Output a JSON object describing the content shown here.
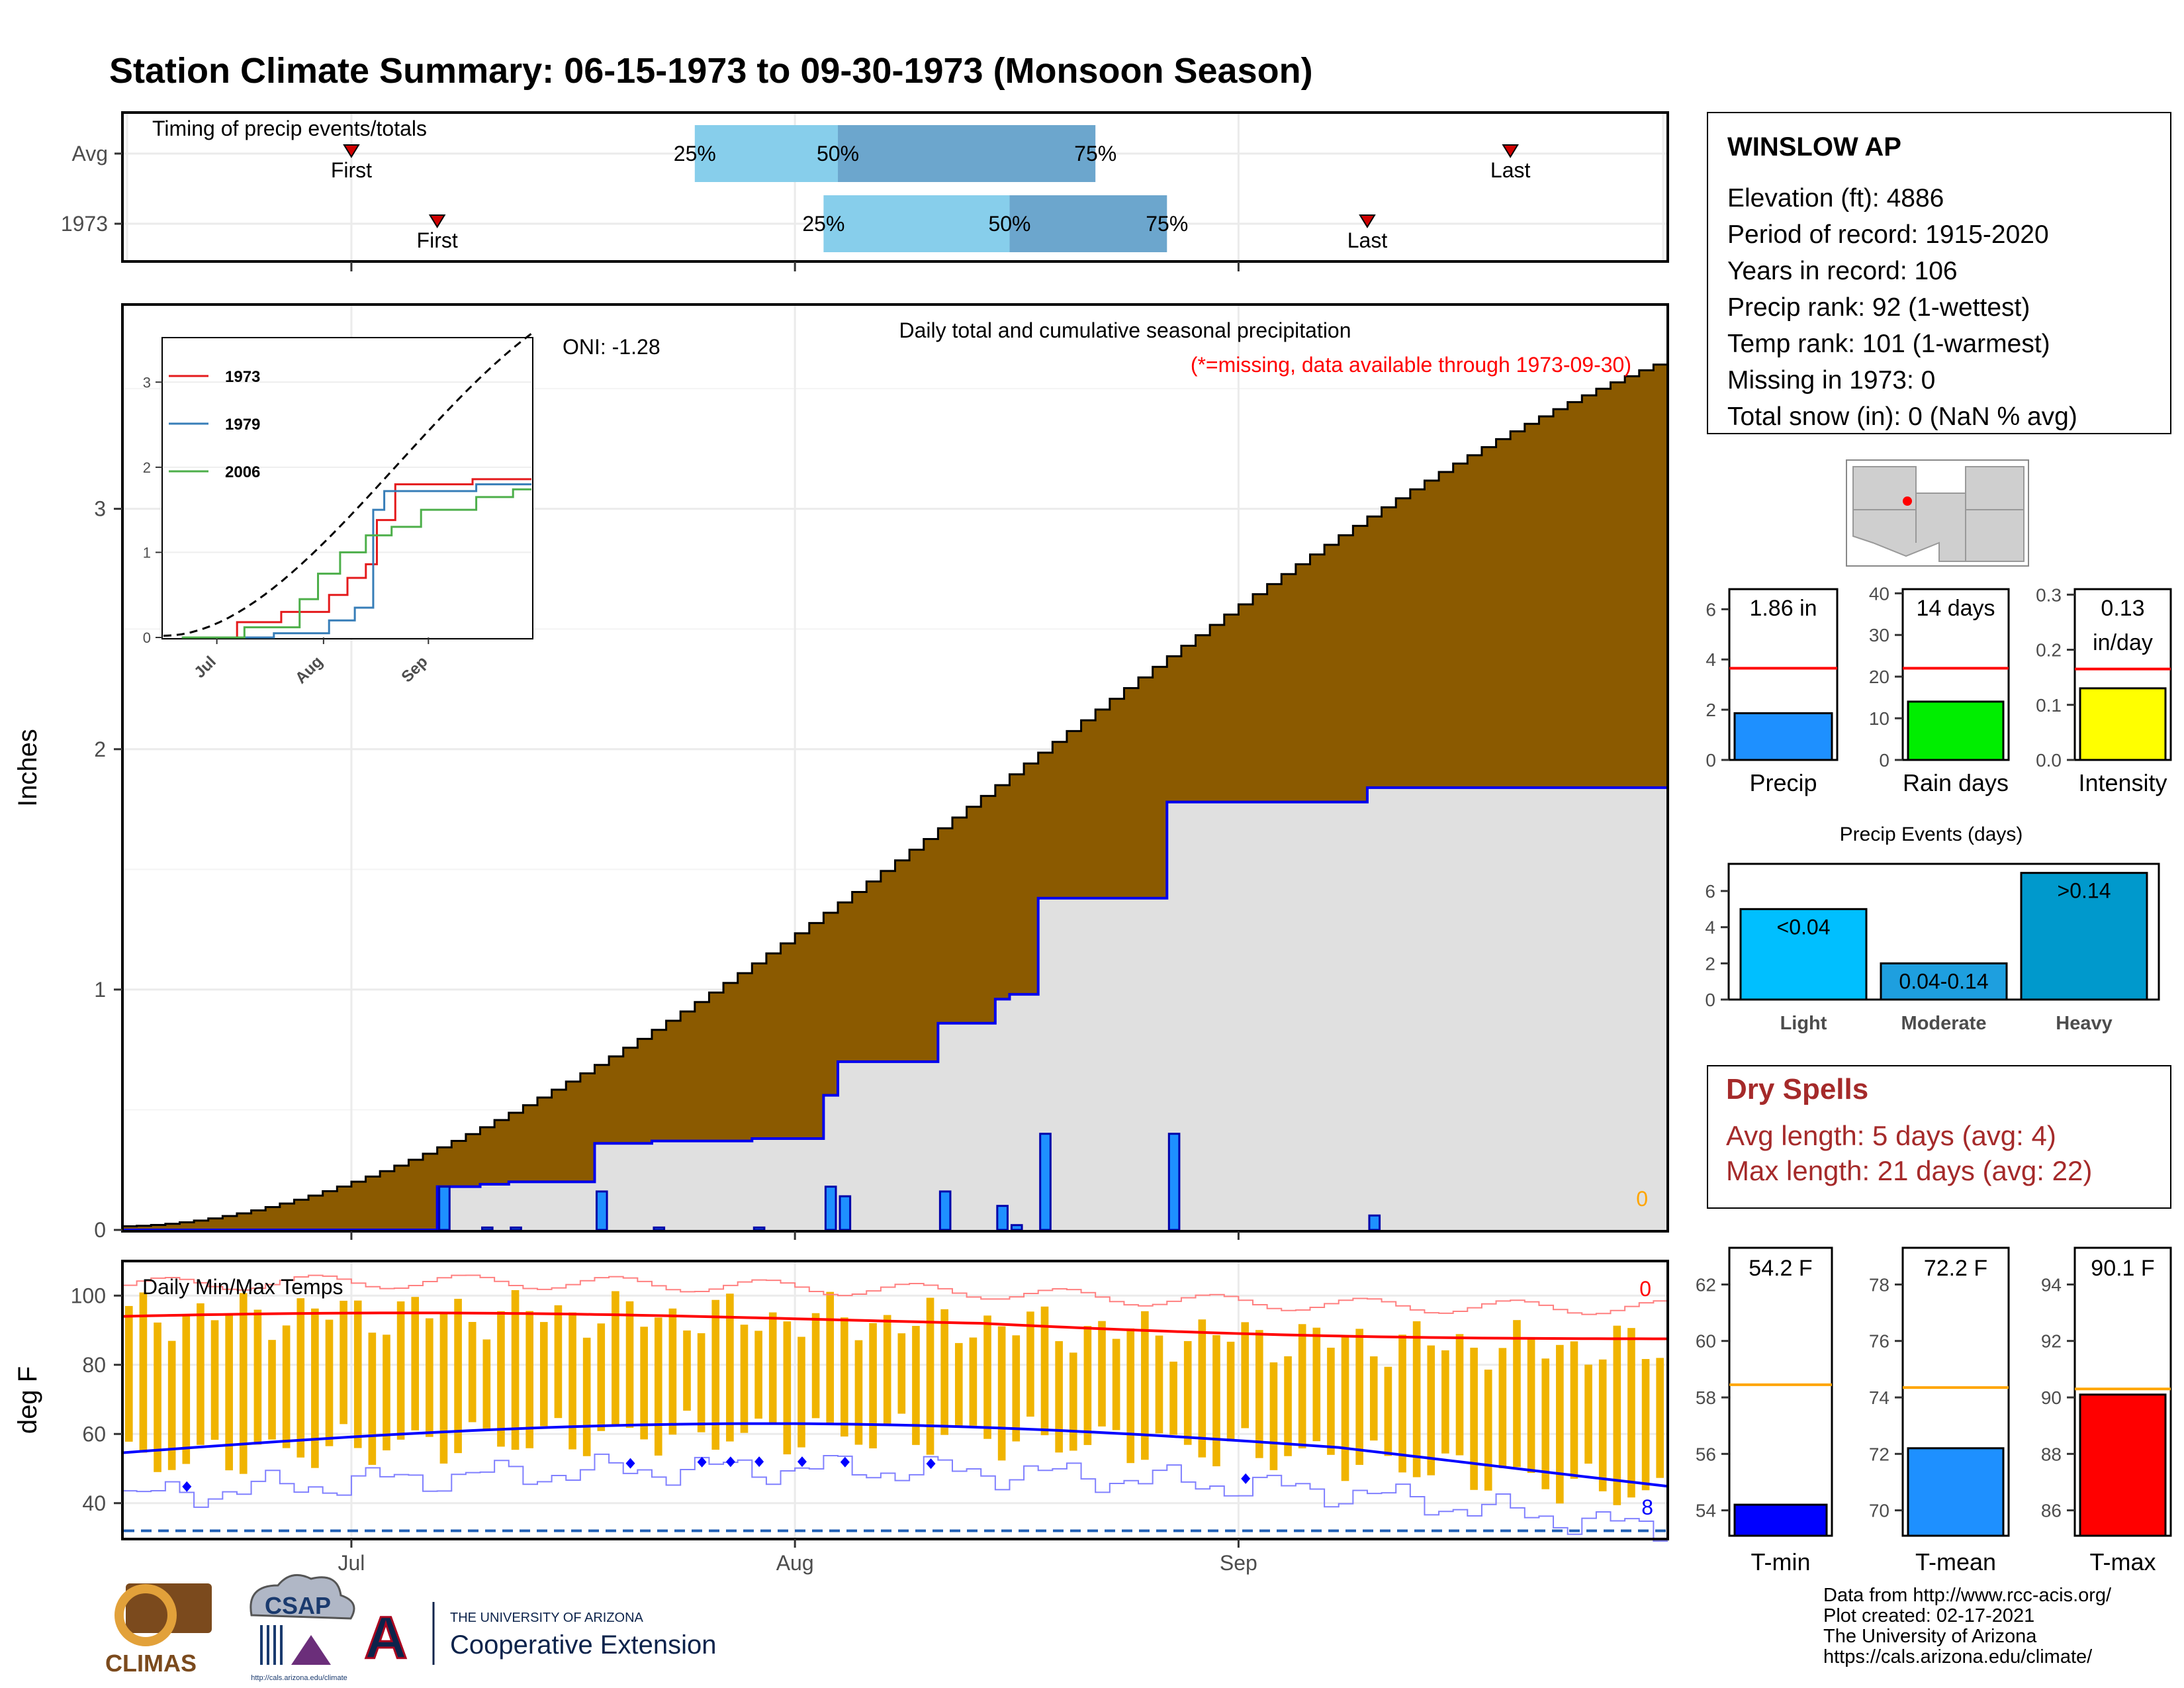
{
  "title": "Station Climate Summary: 06-15-1973 to 09-30-1973 (Monsoon Season)",
  "colors": {
    "title": "#ff0000",
    "cumulative_fill": "#8b5a00",
    "current_fill": "#e0e0e0",
    "daily_bar": "#1e90ff",
    "temp_bar": "#f0b400",
    "avg_max_line": "#ff0000",
    "avg_min_line": "#0000ff",
    "iqr_light": "#87ceeb",
    "iqr_dark": "#6ca6cd",
    "dry_spell_text": "#a52a2a"
  },
  "timing": {
    "panel_label": "Timing of precip events/totals",
    "rows": [
      {
        "label": "Avg",
        "first_date": "1973-07-01",
        "first_text": "First",
        "p25_date": "1973-07-25",
        "p50_date": "1973-08-04",
        "p75_date": "1973-08-22",
        "last_date": "1973-09-20",
        "last_text": "Last",
        "p25_text": "25%",
        "p50_text": "50%",
        "p75_text": "75%"
      },
      {
        "label": "1973",
        "first_date": "1973-07-07",
        "first_text": "First",
        "p25_date": "1973-08-03",
        "p50_date": "1973-08-16",
        "p75_date": "1973-08-27",
        "last_date": "1973-09-10",
        "last_text": "Last",
        "p25_text": "25%",
        "p50_text": "50%",
        "p75_text": "75%"
      }
    ]
  },
  "precip_panel": {
    "subtitle": "Daily total and cumulative seasonal precipitation",
    "missing_note": "(*=missing, data available through 1973-09-30)",
    "oni_text": "ONI: -1.28",
    "missing_count_text": "0",
    "ylabel": "Inches"
  },
  "inset": {
    "legend": [
      {
        "name": "1973",
        "color": "#e41a1c"
      },
      {
        "name": "1979",
        "color": "#377eb8"
      },
      {
        "name": "2006",
        "color": "#4daf4a"
      }
    ]
  },
  "temp_panel": {
    "label": "Daily Min/Max Temps",
    "ylabel": "deg F",
    "max_record_count": "0",
    "min_record_count": "8"
  },
  "station": {
    "name": "WINSLOW AP",
    "lines": [
      "Elevation (ft): 4886",
      "Period of record: 1915-2020",
      "Years in record: 106",
      "Precip rank: 92 (1-wettest)",
      "Temp rank: 101 (1-warmest)",
      "Missing in 1973: 0",
      "Total snow (in): 0 (NaN % avg)"
    ]
  },
  "summary_bars": [
    {
      "xlabel": "Precip",
      "value": 1.86,
      "avg": 3.65,
      "ymax": 6.8,
      "ticks": [
        0,
        2,
        4,
        6
      ],
      "label_lines": [
        "1.86 in"
      ],
      "color": "#1e90ff",
      "avg_color": "#ff0000"
    },
    {
      "xlabel": "Rain days",
      "value": 14,
      "avg": 22,
      "ymax": 41,
      "ticks": [
        0,
        10,
        20,
        30,
        40
      ],
      "label_lines": [
        "14 days"
      ],
      "color": "#00ee00",
      "avg_color": "#ff0000"
    },
    {
      "xlabel": "Intensity",
      "value": 0.13,
      "avg": 0.165,
      "ymax": 0.31,
      "ticks": [
        "0.0",
        "0.1",
        "0.2",
        "0.3"
      ],
      "label_lines": [
        "0.13",
        "in/day"
      ],
      "color": "#ffff00",
      "avg_color": "#ff0000"
    }
  ],
  "events": {
    "title": "Precip Events (days)",
    "categories": [
      "Light",
      "Moderate",
      "Heavy"
    ],
    "bar_labels": [
      "<0.04",
      "0.04-0.14",
      ">0.14"
    ],
    "values": [
      5,
      2,
      7
    ],
    "ticks": [
      0,
      2,
      4,
      6
    ],
    "colors": [
      "#00bfff",
      "#1e9fdf",
      "#0099cc"
    ]
  },
  "dry_spells": {
    "title": "Dry Spells",
    "avg_line": "Avg length: 5 days (avg: 4)",
    "max_line": "Max length: 21 days (avg: 22)"
  },
  "temp_bars": [
    {
      "xlabel": "T-min",
      "value": 54.2,
      "avg": 58.45,
      "ymin": 53.1,
      "ymax": 63.3,
      "ticks": [
        54,
        56,
        58,
        60,
        62
      ],
      "label": "54.2 F",
      "color": "#0000ff",
      "avg_color": "#ffa500"
    },
    {
      "xlabel": "T-mean",
      "value": 72.2,
      "avg": 74.35,
      "ymin": 69.1,
      "ymax": 79.3,
      "ticks": [
        70,
        72,
        74,
        76,
        78
      ],
      "label": "72.2 F",
      "color": "#1e90ff",
      "avg_color": "#ffa500"
    },
    {
      "xlabel": "T-max",
      "value": 90.1,
      "avg": 90.3,
      "ymin": 85.1,
      "ymax": 95.3,
      "ticks": [
        86,
        88,
        90,
        92,
        94
      ],
      "label": "90.1 F",
      "color": "#ff0000",
      "avg_color": "#ffa500"
    }
  ],
  "chart_data": [
    {
      "type": "area",
      "name": "cumulative seasonal precipitation",
      "ylabel": "Inches",
      "ylim": [
        0,
        3.85
      ],
      "x_range": [
        "1973-06-15",
        "1973-09-30"
      ],
      "x_tick_labels": [
        "Jul",
        "Aug",
        "Sep"
      ],
      "y_ticks": [
        0,
        1,
        2,
        3
      ],
      "avg_cumulative_end": 3.6,
      "current_cumulative_end": 1.86,
      "daily_precip": [
        {
          "date": "1973-07-07",
          "value": 0.18
        },
        {
          "date": "1973-07-10",
          "value": 0.01
        },
        {
          "date": "1973-07-12",
          "value": 0.01
        },
        {
          "date": "1973-07-18",
          "value": 0.16
        },
        {
          "date": "1973-07-22",
          "value": 0.01
        },
        {
          "date": "1973-07-29",
          "value": 0.01
        },
        {
          "date": "1973-08-03",
          "value": 0.18
        },
        {
          "date": "1973-08-04",
          "value": 0.14
        },
        {
          "date": "1973-08-11",
          "value": 0.16
        },
        {
          "date": "1973-08-15",
          "value": 0.1
        },
        {
          "date": "1973-08-16",
          "value": 0.02
        },
        {
          "date": "1973-08-18",
          "value": 0.4
        },
        {
          "date": "1973-08-27",
          "value": 0.4
        },
        {
          "date": "1973-09-10",
          "value": 0.06
        }
      ]
    },
    {
      "type": "line",
      "name": "inset cumulative comparison",
      "x_tick_labels": [
        "Jul",
        "Aug",
        "Sep"
      ],
      "y_ticks": [
        0,
        1,
        2,
        3
      ],
      "ylim": [
        0,
        3.5
      ],
      "series": [
        {
          "name": "1973",
          "color": "#e41a1c"
        },
        {
          "name": "1979",
          "color": "#377eb8"
        },
        {
          "name": "2006",
          "color": "#4daf4a"
        }
      ]
    },
    {
      "type": "bar",
      "name": "daily min/max temperatures",
      "ylabel": "deg F",
      "ylim": [
        30,
        110
      ],
      "y_ticks": [
        40,
        60,
        80,
        100
      ],
      "x_tick_labels": [
        "Jul",
        "Aug",
        "Sep"
      ],
      "freeze_line": 32
    }
  ],
  "credits": [
    "Data from http://www.rcc-acis.org/",
    "Plot created: 02-17-2021",
    "The University of Arizona",
    "https://cals.arizona.edu/climate/"
  ],
  "logos": {
    "climas": "CLIMAS",
    "csap": "CSAP",
    "csap_url": "http://cals.arizona.edu/climate",
    "ua_small": "THE UNIVERSITY OF ARIZONA",
    "ua_big": "Cooperative Extension",
    "ua_mark": "A"
  }
}
